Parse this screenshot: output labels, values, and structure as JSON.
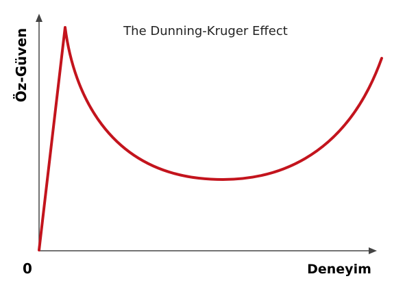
{
  "title": "The Dunning-Kruger Effect",
  "y_axis_label": "Öz-Güven",
  "x_axis_label": "Deneyim",
  "origin_label": "0"
}
